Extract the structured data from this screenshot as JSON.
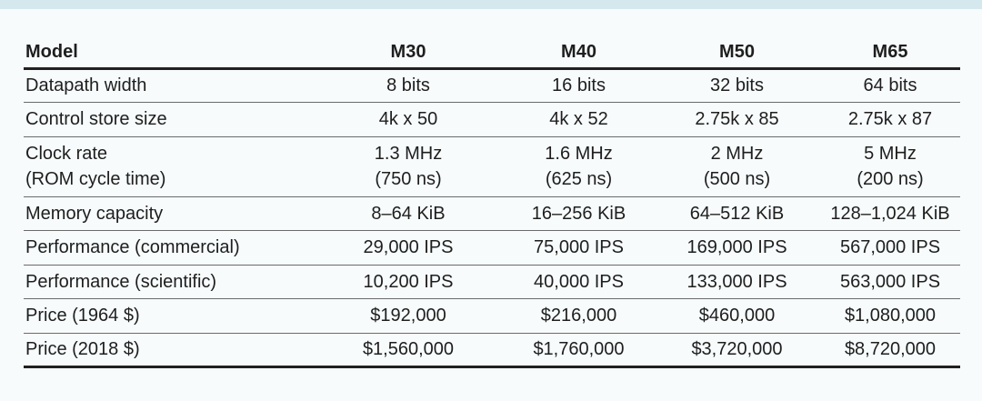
{
  "table": {
    "headers": [
      "Model",
      "M30",
      "M40",
      "M50",
      "M65"
    ],
    "rows": [
      {
        "label": [
          "Datapath width"
        ],
        "cells": [
          [
            "8 bits"
          ],
          [
            "16 bits"
          ],
          [
            "32 bits"
          ],
          [
            "64 bits"
          ]
        ]
      },
      {
        "label": [
          "Control store size"
        ],
        "cells": [
          [
            "4k x 50"
          ],
          [
            "4k x 52"
          ],
          [
            "2.75k x 85"
          ],
          [
            "2.75k x 87"
          ]
        ]
      },
      {
        "label": [
          "Clock rate",
          "(ROM cycle time)"
        ],
        "cells": [
          [
            "1.3 MHz",
            "(750 ns)"
          ],
          [
            "1.6 MHz",
            "(625 ns)"
          ],
          [
            "2 MHz",
            "(500 ns)"
          ],
          [
            "5 MHz",
            "(200 ns)"
          ]
        ]
      },
      {
        "label": [
          "Memory capacity"
        ],
        "cells": [
          [
            "8–64 KiB"
          ],
          [
            "16–256 KiB"
          ],
          [
            "64–512 KiB"
          ],
          [
            "128–1,024 KiB"
          ]
        ]
      },
      {
        "label": [
          "Performance (commercial)"
        ],
        "cells": [
          [
            "29,000 IPS"
          ],
          [
            "75,000 IPS"
          ],
          [
            "169,000 IPS"
          ],
          [
            "567,000 IPS"
          ]
        ]
      },
      {
        "label": [
          "Performance (scientific)"
        ],
        "cells": [
          [
            "10,200 IPS"
          ],
          [
            "40,000 IPS"
          ],
          [
            "133,000 IPS"
          ],
          [
            "563,000 IPS"
          ]
        ]
      },
      {
        "label": [
          "Price (1964 $)"
        ],
        "cells": [
          [
            "$192,000"
          ],
          [
            "$216,000"
          ],
          [
            "$460,000"
          ],
          [
            "$1,080,000"
          ]
        ]
      },
      {
        "label": [
          "Price (2018 $)"
        ],
        "cells": [
          [
            "$1,560,000"
          ],
          [
            "$1,760,000"
          ],
          [
            "$3,720,000"
          ],
          [
            "$8,720,000"
          ]
        ]
      }
    ]
  }
}
